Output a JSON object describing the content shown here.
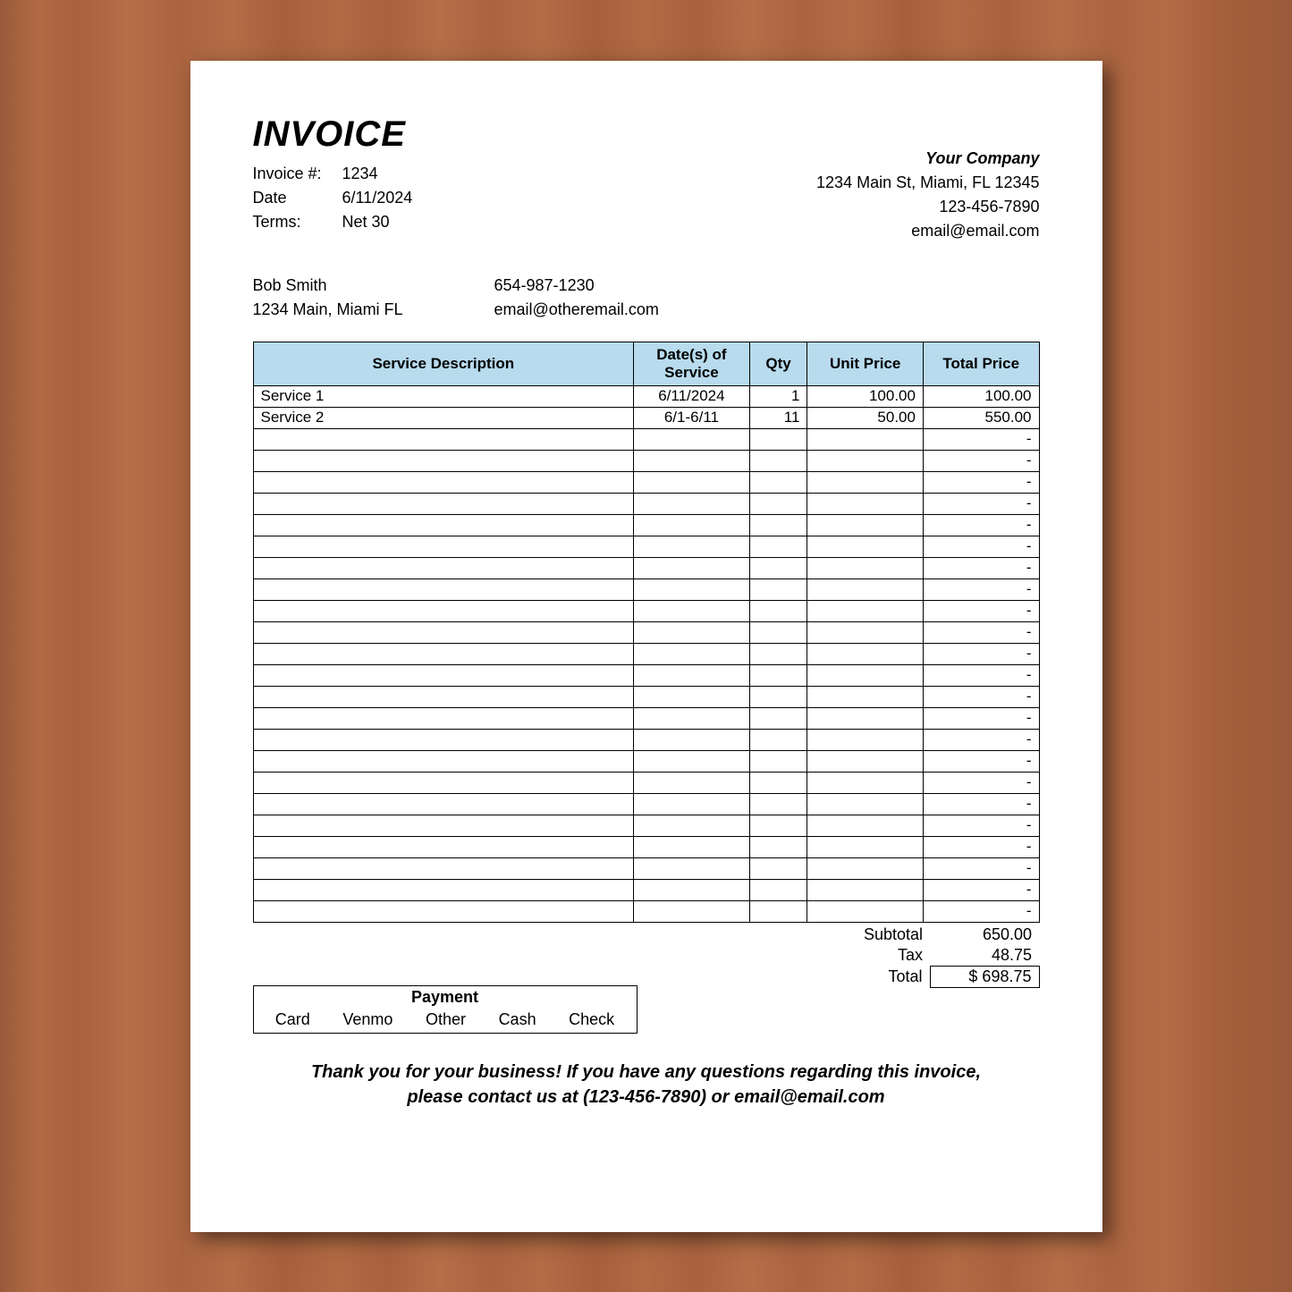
{
  "title": "INVOICE",
  "meta": {
    "invoice_label": "Invoice #:",
    "invoice_no": "1234",
    "date_label": "Date",
    "date": "6/11/2024",
    "terms_label": "Terms:",
    "terms": "Net 30"
  },
  "company": {
    "name": "Your Company",
    "address": "1234 Main St, Miami, FL 12345",
    "phone": "123-456-7890",
    "email": "email@email.com"
  },
  "client": {
    "name": "Bob Smith",
    "address": "1234 Main, Miami FL",
    "phone": "654-987-1230",
    "email": "email@otheremail.com"
  },
  "columns": {
    "desc": "Service Description",
    "dates": "Date(s) of Service",
    "qty": "Qty",
    "unit": "Unit Price",
    "total": "Total Price"
  },
  "rows": [
    {
      "desc": "Service 1",
      "dates": "6/11/2024",
      "qty": "1",
      "unit": "100.00",
      "total": "100.00"
    },
    {
      "desc": "Service 2",
      "dates": "6/1-6/11",
      "qty": "11",
      "unit": "50.00",
      "total": "550.00"
    },
    {
      "desc": "",
      "dates": "",
      "qty": "",
      "unit": "",
      "total": "-"
    },
    {
      "desc": "",
      "dates": "",
      "qty": "",
      "unit": "",
      "total": "-"
    },
    {
      "desc": "",
      "dates": "",
      "qty": "",
      "unit": "",
      "total": "-"
    },
    {
      "desc": "",
      "dates": "",
      "qty": "",
      "unit": "",
      "total": "-"
    },
    {
      "desc": "",
      "dates": "",
      "qty": "",
      "unit": "",
      "total": "-"
    },
    {
      "desc": "",
      "dates": "",
      "qty": "",
      "unit": "",
      "total": "-"
    },
    {
      "desc": "",
      "dates": "",
      "qty": "",
      "unit": "",
      "total": "-"
    },
    {
      "desc": "",
      "dates": "",
      "qty": "",
      "unit": "",
      "total": "-"
    },
    {
      "desc": "",
      "dates": "",
      "qty": "",
      "unit": "",
      "total": "-"
    },
    {
      "desc": "",
      "dates": "",
      "qty": "",
      "unit": "",
      "total": "-"
    },
    {
      "desc": "",
      "dates": "",
      "qty": "",
      "unit": "",
      "total": "-"
    },
    {
      "desc": "",
      "dates": "",
      "qty": "",
      "unit": "",
      "total": "-"
    },
    {
      "desc": "",
      "dates": "",
      "qty": "",
      "unit": "",
      "total": "-"
    },
    {
      "desc": "",
      "dates": "",
      "qty": "",
      "unit": "",
      "total": "-"
    },
    {
      "desc": "",
      "dates": "",
      "qty": "",
      "unit": "",
      "total": "-"
    },
    {
      "desc": "",
      "dates": "",
      "qty": "",
      "unit": "",
      "total": "-"
    },
    {
      "desc": "",
      "dates": "",
      "qty": "",
      "unit": "",
      "total": "-"
    },
    {
      "desc": "",
      "dates": "",
      "qty": "",
      "unit": "",
      "total": "-"
    },
    {
      "desc": "",
      "dates": "",
      "qty": "",
      "unit": "",
      "total": "-"
    },
    {
      "desc": "",
      "dates": "",
      "qty": "",
      "unit": "",
      "total": "-"
    },
    {
      "desc": "",
      "dates": "",
      "qty": "",
      "unit": "",
      "total": "-"
    },
    {
      "desc": "",
      "dates": "",
      "qty": "",
      "unit": "",
      "total": "-"
    },
    {
      "desc": "",
      "dates": "",
      "qty": "",
      "unit": "",
      "total": "-"
    }
  ],
  "totals": {
    "subtotal_label": "Subtotal",
    "subtotal": "650.00",
    "tax_label": "Tax",
    "tax": "48.75",
    "total_label": "Total",
    "total": "$  698.75"
  },
  "payment": {
    "header": "Payment",
    "methods": [
      "Card",
      "Venmo",
      "Other",
      "Cash",
      "Check"
    ]
  },
  "footer": {
    "line1": "Thank you for your business!  If you have any questions regarding this invoice,",
    "line2": "please contact us at (123-456-7890) or email@email.com"
  },
  "style": {
    "header_bg": "#b8dbee",
    "border_color": "#000000",
    "paper_bg": "#ffffff",
    "desk_bg": "#a8623e"
  }
}
